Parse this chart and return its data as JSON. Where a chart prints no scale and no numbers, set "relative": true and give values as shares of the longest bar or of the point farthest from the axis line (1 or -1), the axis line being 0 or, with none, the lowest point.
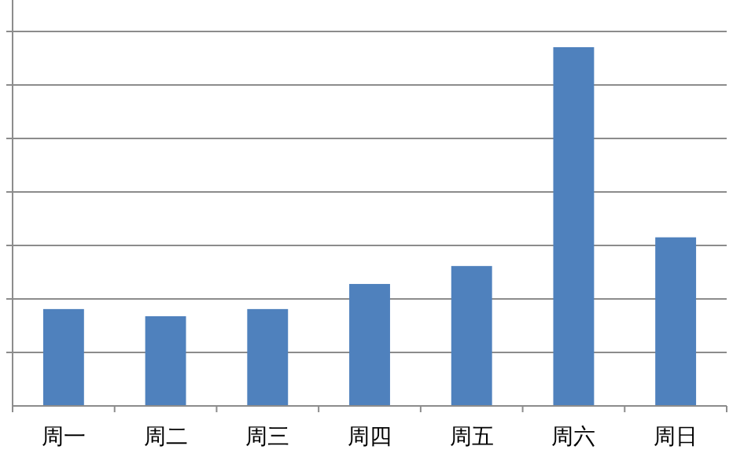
{
  "chart_data": {
    "type": "bar",
    "relative": true,
    "categories": [
      "周一",
      "周二",
      "周三",
      "周四",
      "周五",
      "周六",
      "周日"
    ],
    "values": [
      0.27,
      0.25,
      0.27,
      0.34,
      0.39,
      1,
      0.47
    ],
    "color": "#4f81bd",
    "grid": "y"
  }
}
